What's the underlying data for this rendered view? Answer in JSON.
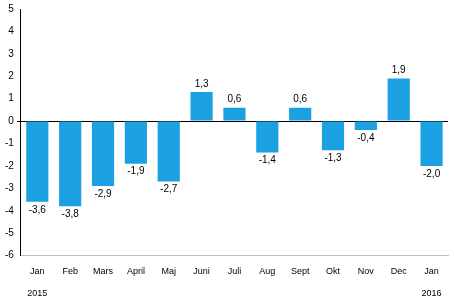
{
  "chart_data": {
    "type": "bar",
    "categories": [
      "Jan",
      "Feb",
      "Mars",
      "April",
      "Maj",
      "Juni",
      "Juli",
      "Aug",
      "Sept",
      "Okt",
      "Nov",
      "Dec",
      "Jan"
    ],
    "years": [
      "2015",
      null,
      null,
      null,
      null,
      null,
      null,
      null,
      null,
      null,
      null,
      null,
      "2016"
    ],
    "values": [
      -3.6,
      -3.8,
      -2.9,
      -1.9,
      -2.7,
      1.3,
      0.6,
      -1.4,
      0.6,
      -1.3,
      -0.4,
      1.9,
      -2.0
    ],
    "value_labels": [
      "-3,6",
      "-3,8",
      "-2,9",
      "-1,9",
      "-2,7",
      "1,3",
      "0,6",
      "-1,4",
      "0,6",
      "-1,3",
      "-0,4",
      "1,9",
      "-2,0"
    ],
    "data_labels": true,
    "color": "#1ba1e2",
    "ylim": [
      -6,
      5
    ],
    "yticks": [
      -6,
      -5,
      -4,
      -3,
      -2,
      -1,
      0,
      1,
      2,
      3,
      4,
      5
    ],
    "grid": false
  }
}
